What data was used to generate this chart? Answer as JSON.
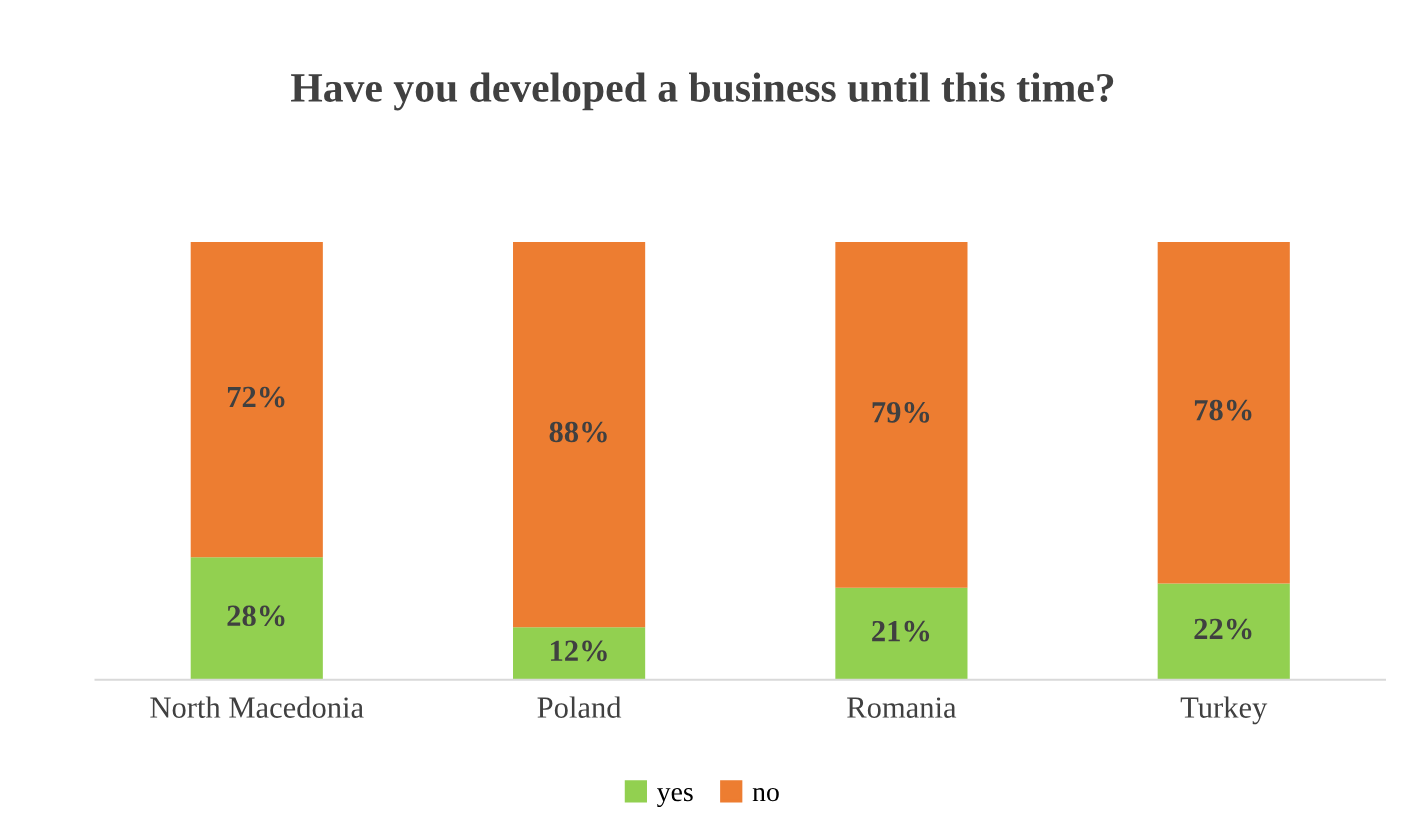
{
  "chart_data": {
    "type": "bar",
    "stacked": true,
    "title": "Have you developed a business until this time?",
    "categories": [
      "North Macedonia",
      "Poland",
      "Romania",
      "Turkey"
    ],
    "series": [
      {
        "name": "yes",
        "color": "#92d050",
        "values": [
          28,
          12,
          21,
          22
        ],
        "value_labels": [
          "28%",
          "12%",
          "21%",
          "22%"
        ]
      },
      {
        "name": "no",
        "color": "#ed7d31",
        "values": [
          72,
          88,
          79,
          78
        ],
        "value_labels": [
          "72%",
          "88%",
          "79%",
          "78%"
        ]
      }
    ],
    "legend": "bottom",
    "grid": false
  }
}
